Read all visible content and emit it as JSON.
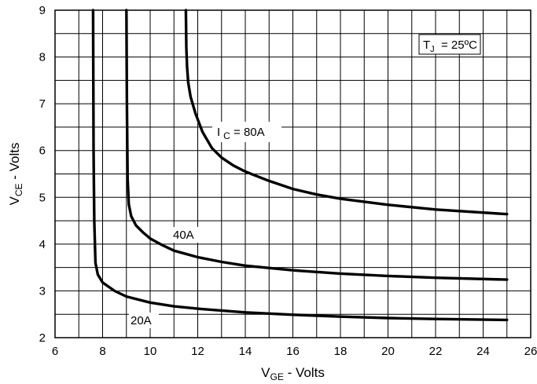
{
  "chart_data": {
    "type": "line",
    "title": "",
    "xlabel": {
      "main": "V",
      "sub": "GE",
      "rest": " - Volts"
    },
    "ylabel": {
      "main": "V",
      "sub": "CE",
      "rest": " - Volts"
    },
    "xlim": [
      6,
      26
    ],
    "ylim": [
      2,
      9
    ],
    "x_ticks": [
      "6",
      "8",
      "10",
      "12",
      "14",
      "16",
      "18",
      "20",
      "22",
      "24",
      "26"
    ],
    "y_ticks": [
      "2",
      "3",
      "4",
      "5",
      "6",
      "7",
      "8",
      "9"
    ],
    "grid": true,
    "annotations": {
      "tj": {
        "main": "T",
        "sub": "J",
        "rest": "  = 25ºC"
      },
      "ic80": {
        "main": "I",
        "sub": "C",
        "rest": " = 80A"
      },
      "ic40": "40A",
      "ic20": "20A"
    },
    "series": [
      {
        "label_ref": "20A",
        "x": [
          7.6,
          7.62,
          7.65,
          7.7,
          7.8,
          8.0,
          8.5,
          9.0,
          10.0,
          11.0,
          12.0,
          14.0,
          16.0,
          18.0,
          20.0,
          22.0,
          25.0
        ],
        "y": [
          9.0,
          6.0,
          4.5,
          3.6,
          3.35,
          3.18,
          3.0,
          2.88,
          2.75,
          2.67,
          2.62,
          2.54,
          2.49,
          2.45,
          2.42,
          2.4,
          2.38
        ]
      },
      {
        "label_ref": "40A",
        "x": [
          9.0,
          9.02,
          9.05,
          9.1,
          9.2,
          9.4,
          9.7,
          10.0,
          10.5,
          11.0,
          12.0,
          13.0,
          14.0,
          16.0,
          18.0,
          20.0,
          22.0,
          25.0
        ],
        "y": [
          9.0,
          7.0,
          5.4,
          4.85,
          4.6,
          4.4,
          4.25,
          4.12,
          3.98,
          3.86,
          3.72,
          3.62,
          3.54,
          3.44,
          3.37,
          3.32,
          3.28,
          3.24
        ]
      },
      {
        "label_ref": "IC = 80A",
        "x": [
          11.5,
          11.52,
          11.55,
          11.6,
          11.7,
          11.9,
          12.2,
          12.6,
          13.0,
          13.5,
          14.0,
          15.0,
          16.0,
          17.0,
          18.0,
          20.0,
          22.0,
          25.0
        ],
        "y": [
          9.0,
          8.2,
          7.8,
          7.45,
          7.15,
          6.8,
          6.4,
          6.05,
          5.85,
          5.68,
          5.55,
          5.35,
          5.18,
          5.06,
          4.97,
          4.84,
          4.74,
          4.64
        ]
      }
    ]
  }
}
